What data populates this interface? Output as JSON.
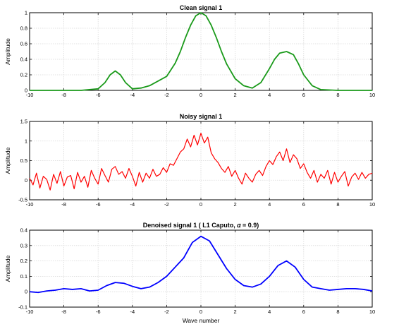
{
  "chart_data": [
    {
      "type": "line",
      "title": "Clean signal 1",
      "xlabel": "",
      "ylabel": "Amplitude",
      "xlim": [
        -10,
        10
      ],
      "ylim": [
        0,
        1
      ],
      "xticks": [
        -10,
        -8,
        -6,
        -4,
        -2,
        0,
        2,
        4,
        6,
        8,
        10
      ],
      "yticks": [
        0,
        0.2,
        0.4,
        0.6,
        0.8,
        1
      ],
      "grid": true,
      "color": "#1a9a1a",
      "x": [
        -10,
        -9,
        -8,
        -7,
        -6,
        -5.6,
        -5.3,
        -5,
        -4.7,
        -4.4,
        -4,
        -3.5,
        -3,
        -2.5,
        -2,
        -1.5,
        -1.2,
        -0.9,
        -0.6,
        -0.3,
        0,
        0.3,
        0.6,
        0.9,
        1.2,
        1.5,
        2,
        2.5,
        3,
        3.5,
        4,
        4.3,
        4.6,
        5,
        5.4,
        5.7,
        6,
        6.5,
        7,
        8,
        9,
        10
      ],
      "y": [
        0,
        0,
        0,
        0,
        0.02,
        0.1,
        0.2,
        0.25,
        0.2,
        0.1,
        0.02,
        0.03,
        0.06,
        0.12,
        0.18,
        0.35,
        0.5,
        0.68,
        0.84,
        0.96,
        1.0,
        0.96,
        0.84,
        0.68,
        0.5,
        0.34,
        0.15,
        0.06,
        0.03,
        0.1,
        0.28,
        0.4,
        0.48,
        0.5,
        0.46,
        0.34,
        0.2,
        0.06,
        0.01,
        0,
        0,
        0
      ]
    },
    {
      "type": "line",
      "title": "Noisy signal 1",
      "xlabel": "",
      "ylabel": "Amplitude",
      "xlim": [
        -10,
        10
      ],
      "ylim": [
        -0.5,
        1.5
      ],
      "xticks": [
        -10,
        -8,
        -6,
        -4,
        -2,
        0,
        2,
        4,
        6,
        8,
        10
      ],
      "yticks": [
        -0.5,
        0,
        0.5,
        1,
        1.5
      ],
      "grid": true,
      "color": "#ff0000",
      "x": [
        -10,
        -9.8,
        -9.6,
        -9.4,
        -9.2,
        -9,
        -8.8,
        -8.6,
        -8.4,
        -8.2,
        -8,
        -7.8,
        -7.6,
        -7.4,
        -7.2,
        -7,
        -6.8,
        -6.6,
        -6.4,
        -6.2,
        -6,
        -5.8,
        -5.6,
        -5.4,
        -5.2,
        -5,
        -4.8,
        -4.6,
        -4.4,
        -4.2,
        -4,
        -3.8,
        -3.6,
        -3.4,
        -3.2,
        -3,
        -2.8,
        -2.6,
        -2.4,
        -2.2,
        -2,
        -1.8,
        -1.6,
        -1.4,
        -1.2,
        -1,
        -0.8,
        -0.6,
        -0.4,
        -0.2,
        0,
        0.2,
        0.4,
        0.6,
        0.8,
        1,
        1.2,
        1.4,
        1.6,
        1.8,
        2,
        2.2,
        2.4,
        2.6,
        2.8,
        3,
        3.2,
        3.4,
        3.6,
        3.8,
        4,
        4.2,
        4.4,
        4.6,
        4.8,
        5,
        5.2,
        5.4,
        5.6,
        5.8,
        6,
        6.2,
        6.4,
        6.6,
        6.8,
        7,
        7.2,
        7.4,
        7.6,
        7.8,
        8,
        8.2,
        8.4,
        8.6,
        8.8,
        9,
        9.2,
        9.4,
        9.6,
        9.8,
        10
      ],
      "y": [
        0.05,
        -0.12,
        0.18,
        -0.2,
        0.1,
        0.02,
        -0.25,
        0.15,
        -0.08,
        0.22,
        -0.15,
        0.08,
        0.12,
        -0.22,
        0.2,
        -0.05,
        0.1,
        -0.18,
        0.25,
        0.05,
        -0.1,
        0.3,
        0.12,
        -0.05,
        0.28,
        0.35,
        0.15,
        0.22,
        0.05,
        0.3,
        0.1,
        -0.15,
        0.2,
        -0.05,
        0.18,
        0.05,
        0.28,
        0.1,
        0.15,
        0.32,
        0.2,
        0.42,
        0.38,
        0.55,
        0.72,
        0.8,
        1.05,
        0.85,
        1.15,
        0.9,
        1.2,
        0.95,
        1.1,
        0.7,
        0.55,
        0.45,
        0.3,
        0.2,
        0.35,
        0.1,
        0.25,
        0.05,
        -0.1,
        0.18,
        0.05,
        -0.05,
        0.15,
        0.25,
        0.12,
        0.35,
        0.5,
        0.4,
        0.6,
        0.72,
        0.5,
        0.8,
        0.45,
        0.65,
        0.55,
        0.3,
        0.42,
        0.2,
        0.05,
        0.25,
        -0.05,
        0.15,
        0.05,
        0.25,
        -0.1,
        0.2,
        -0.05,
        0.1,
        0.22,
        -0.15,
        0.08,
        0.18,
        0.02,
        0.2,
        0.05,
        0.15,
        0.18
      ]
    },
    {
      "type": "line",
      "title": "Denoised signal 1 ( L1 Caputo,  𝛼 = 0.9)",
      "xlabel": "Wave number",
      "ylabel": "Amplitude",
      "xlim": [
        -10,
        10
      ],
      "ylim": [
        -0.1,
        0.4
      ],
      "xticks": [
        -10,
        -8,
        -6,
        -4,
        -2,
        0,
        2,
        4,
        6,
        8,
        10
      ],
      "yticks": [
        -0.1,
        0,
        0.1,
        0.2,
        0.3,
        0.4
      ],
      "grid": true,
      "color": "#0000ff",
      "x": [
        -10,
        -9.5,
        -9,
        -8.5,
        -8,
        -7.5,
        -7,
        -6.5,
        -6,
        -5.5,
        -5,
        -4.5,
        -4,
        -3.5,
        -3,
        -2.5,
        -2,
        -1.5,
        -1,
        -0.5,
        0,
        0.5,
        1,
        1.5,
        2,
        2.5,
        3,
        3.5,
        4,
        4.5,
        5,
        5.5,
        6,
        6.5,
        7,
        7.5,
        8,
        8.5,
        9,
        9.5,
        10
      ],
      "y": [
        0,
        -0.005,
        0.005,
        0.01,
        0.02,
        0.015,
        0.02,
        0.005,
        0.01,
        0.04,
        0.06,
        0.055,
        0.035,
        0.02,
        0.03,
        0.06,
        0.1,
        0.16,
        0.22,
        0.32,
        0.36,
        0.33,
        0.24,
        0.15,
        0.08,
        0.04,
        0.03,
        0.05,
        0.1,
        0.17,
        0.2,
        0.16,
        0.08,
        0.03,
        0.02,
        0.01,
        0.015,
        0.02,
        0.02,
        0.015,
        0.005
      ]
    }
  ]
}
